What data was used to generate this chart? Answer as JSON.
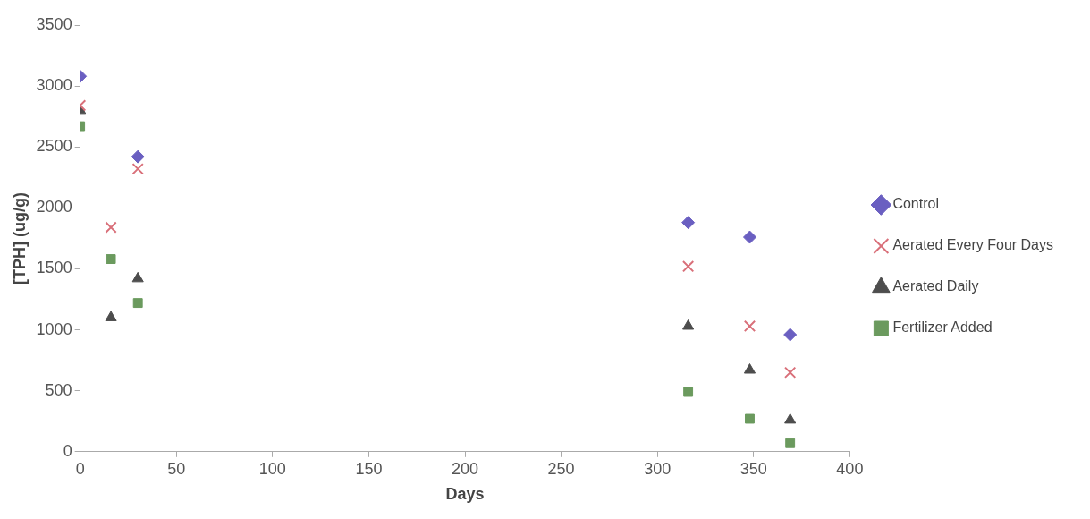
{
  "chart_data": {
    "type": "scatter",
    "xlabel": "Days",
    "ylabel": "[TPH] (ug/g)",
    "xlim": [
      0,
      400
    ],
    "xticks": [
      0,
      50,
      100,
      150,
      200,
      250,
      300,
      350,
      400
    ],
    "ylim": [
      0,
      3500
    ],
    "yticks": [
      0,
      500,
      1000,
      1500,
      2000,
      2500,
      3000,
      3500
    ],
    "legend": "right",
    "series": [
      {
        "name": "Control",
        "color": "#6a5fc1",
        "marker": "diamond",
        "x": [
          0,
          30,
          316,
          348,
          369
        ],
        "values": [
          3080,
          2420,
          1880,
          1760,
          960
        ]
      },
      {
        "name": "Aerated Every Four Days",
        "color": "#d9707a",
        "marker": "cross",
        "x": [
          0,
          16,
          30,
          316,
          348,
          369
        ],
        "values": [
          2840,
          1840,
          2320,
          1520,
          1030,
          650
        ]
      },
      {
        "name": "Aerated Daily",
        "color": "#4d4d4d",
        "marker": "triangle",
        "x": [
          0,
          16,
          30,
          316,
          348,
          369
        ],
        "values": [
          2800,
          1100,
          1420,
          1030,
          670,
          260
        ]
      },
      {
        "name": "Fertilizer Added",
        "color": "#6b9a5e",
        "marker": "square",
        "x": [
          0,
          16,
          30,
          316,
          348,
          369
        ],
        "values": [
          2670,
          1580,
          1220,
          490,
          270,
          70
        ]
      }
    ]
  }
}
